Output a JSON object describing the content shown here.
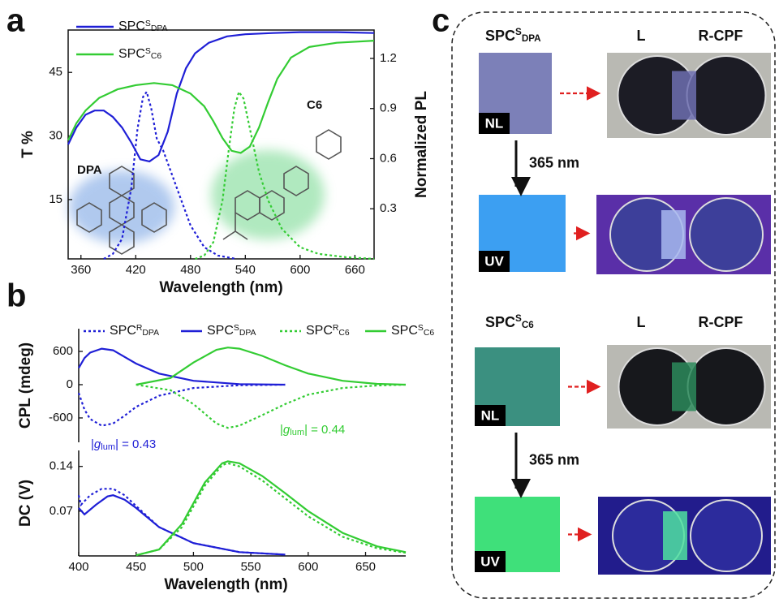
{
  "chart_data": [
    {
      "type": "line",
      "panel": "a",
      "xlabel": "Wavelength (nm)",
      "ylabel": "T %",
      "y2label": "Normalized PL",
      "xlim": [
        346,
        681
      ],
      "xticks": [
        360,
        420,
        480,
        540,
        600,
        660
      ],
      "ylim": [
        1,
        55
      ],
      "yticks": [
        15,
        30,
        45
      ],
      "y2lim": [
        0,
        1.37
      ],
      "y2ticks": [
        0.3,
        0.6,
        0.9,
        1.2
      ],
      "legend": "upper left",
      "annotations": [
        {
          "text": "DPA",
          "color": "#1f1fd6"
        },
        {
          "text": "C6",
          "color": "#2fb84a"
        }
      ],
      "series": [
        {
          "name": [
            "SPC",
            "S",
            "DPA"
          ],
          "color": "#1f1fd6",
          "dash": false,
          "x": [
            346,
            355,
            365,
            375,
            385,
            395,
            405,
            415,
            425,
            435,
            445,
            455,
            465,
            475,
            485,
            500,
            520,
            540,
            570,
            600,
            640,
            681
          ],
          "values": [
            28,
            32,
            35,
            36,
            36,
            34.5,
            32,
            28.5,
            24.5,
            24,
            25.5,
            31,
            40,
            46,
            49.5,
            52,
            53.5,
            54,
            54.3,
            54.5,
            54.5,
            54.3
          ]
        },
        {
          "name": [
            "SPC",
            "S",
            "C6"
          ],
          "color": "#33cc33",
          "dash": false,
          "x": [
            346,
            355,
            365,
            380,
            400,
            420,
            440,
            460,
            480,
            495,
            505,
            515,
            525,
            535,
            545,
            555,
            565,
            575,
            590,
            610,
            640,
            681
          ],
          "values": [
            29,
            33,
            36,
            39,
            41,
            42,
            42.5,
            42,
            40,
            37,
            33.5,
            29.5,
            26.5,
            26,
            27.5,
            32,
            38,
            43.5,
            48.5,
            51,
            52,
            52.5
          ]
        },
        {
          "color": "#1f1fd6",
          "dash": true,
          "axis": "y2",
          "x": [
            385,
            395,
            405,
            415,
            422,
            428,
            432,
            437,
            443,
            450,
            460,
            470,
            480,
            495,
            510,
            530
          ],
          "values": [
            0,
            0.03,
            0.12,
            0.42,
            0.78,
            0.97,
            1.0,
            0.9,
            0.72,
            0.65,
            0.5,
            0.35,
            0.2,
            0.07,
            0.02,
            0
          ]
        },
        {
          "color": "#33cc33",
          "dash": true,
          "axis": "y2",
          "x": [
            485,
            495,
            505,
            515,
            522,
            528,
            533,
            538,
            545,
            555,
            565,
            580,
            600,
            620,
            650,
            681
          ],
          "values": [
            0,
            0.02,
            0.1,
            0.35,
            0.66,
            0.9,
            1.0,
            0.96,
            0.78,
            0.52,
            0.35,
            0.18,
            0.07,
            0.03,
            0.01,
            0
          ]
        }
      ]
    },
    {
      "type": "line",
      "panel": "b",
      "ylabel": "CPL (mdeg)",
      "xlim": [
        400,
        685
      ],
      "ylim": [
        -1040,
        1010
      ],
      "yticks": [
        -600,
        0,
        600
      ],
      "legend": "upper center",
      "annotations": [
        {
          "text": [
            "|",
            "g",
            "lum",
            "| = 0.43"
          ],
          "color": "#1f1fd6"
        },
        {
          "text": [
            "|",
            "g",
            "lum",
            "| = 0.44"
          ],
          "color": "#33cc33"
        }
      ],
      "series": [
        {
          "name": [
            "SPC",
            "R",
            "DPA"
          ],
          "color": "#1f1fd6",
          "dash": true,
          "x": [
            400,
            405,
            410,
            420,
            430,
            440,
            450,
            470,
            500,
            540,
            580
          ],
          "values": [
            -150,
            -450,
            -620,
            -740,
            -700,
            -560,
            -400,
            -200,
            -60,
            -10,
            0
          ]
        },
        {
          "name": [
            "SPC",
            "S",
            "DPA"
          ],
          "color": "#1f1fd6",
          "dash": false,
          "x": [
            400,
            405,
            410,
            420,
            430,
            440,
            450,
            470,
            500,
            540,
            580
          ],
          "values": [
            300,
            480,
            580,
            650,
            620,
            500,
            380,
            200,
            70,
            10,
            0
          ]
        },
        {
          "name": [
            "SPC",
            "R",
            "C6"
          ],
          "color": "#33cc33",
          "dash": true,
          "x": [
            450,
            480,
            500,
            520,
            530,
            540,
            560,
            580,
            600,
            630,
            660,
            685
          ],
          "values": [
            0,
            -100,
            -350,
            -700,
            -780,
            -740,
            -550,
            -350,
            -180,
            -60,
            -15,
            0
          ]
        },
        {
          "name": [
            "SPC",
            "S",
            "C6"
          ],
          "color": "#33cc33",
          "dash": false,
          "x": [
            450,
            480,
            500,
            520,
            530,
            540,
            560,
            580,
            600,
            630,
            660,
            685
          ],
          "values": [
            0,
            120,
            400,
            630,
            670,
            650,
            520,
            350,
            200,
            70,
            15,
            0
          ]
        }
      ]
    },
    {
      "type": "line",
      "xlabel": "Wavelength (nm)",
      "ylabel": "DC (V)",
      "xlim": [
        400,
        685
      ],
      "xticks": [
        400,
        450,
        500,
        550,
        600,
        650
      ],
      "ylim": [
        0,
        0.165
      ],
      "yticks": [
        0.07,
        0.14
      ],
      "series": [
        {
          "color": "#1f1fd6",
          "dash": true,
          "x": [
            400,
            402,
            410,
            420,
            430,
            440,
            450,
            470,
            500,
            540,
            580
          ],
          "values": [
            0.095,
            0.08,
            0.095,
            0.105,
            0.105,
            0.095,
            0.078,
            0.045,
            0.02,
            0.006,
            0.002
          ]
        },
        {
          "color": "#1f1fd6",
          "dash": false,
          "x": [
            400,
            405,
            415,
            425,
            430,
            440,
            450,
            470,
            500,
            540,
            580
          ],
          "values": [
            0.075,
            0.065,
            0.08,
            0.093,
            0.095,
            0.088,
            0.075,
            0.045,
            0.02,
            0.006,
            0.002
          ]
        },
        {
          "color": "#33cc33",
          "dash": true,
          "x": [
            450,
            470,
            490,
            510,
            525,
            530,
            540,
            560,
            580,
            600,
            630,
            660,
            685
          ],
          "values": [
            0.001,
            0.01,
            0.045,
            0.11,
            0.142,
            0.145,
            0.14,
            0.118,
            0.09,
            0.062,
            0.03,
            0.012,
            0.005
          ]
        },
        {
          "color": "#33cc33",
          "dash": false,
          "x": [
            450,
            470,
            490,
            510,
            525,
            530,
            540,
            560,
            580,
            600,
            630,
            660,
            685
          ],
          "values": [
            0.001,
            0.01,
            0.05,
            0.115,
            0.145,
            0.148,
            0.145,
            0.125,
            0.098,
            0.07,
            0.036,
            0.015,
            0.006
          ]
        }
      ]
    }
  ],
  "photos": {
    "panel": "c",
    "groups": [
      {
        "sample": [
          "SPC",
          "S",
          "DPA"
        ],
        "filters": [
          "L",
          "R-CPF"
        ],
        "before": "NL",
        "after": "UV",
        "excitation": "365 nm"
      },
      {
        "sample": [
          "SPC",
          "S",
          "C6"
        ],
        "filters": [
          "L",
          "R-CPF"
        ],
        "before": "NL",
        "after": "UV",
        "excitation": "365 nm"
      }
    ]
  }
}
